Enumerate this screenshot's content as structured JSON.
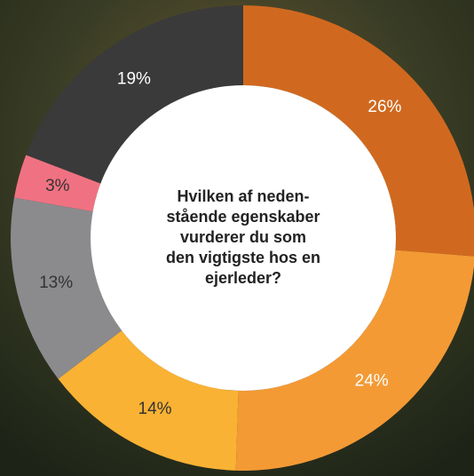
{
  "chart_data": {
    "type": "donut",
    "title": [
      "Hvilken af neden-",
      "stående egenskaber",
      "vurderer du som",
      "den vigtigste hos en",
      "ejerleder?"
    ],
    "values": [
      26,
      24,
      14,
      13,
      3,
      19
    ],
    "value_labels": [
      "26%",
      "24%",
      "14%",
      "13%",
      "3%",
      "19%"
    ],
    "colors": [
      "#d0691f",
      "#f39a35",
      "#f9b233",
      "#8b8b8e",
      "#f07282",
      "#3a3a3a"
    ],
    "label_colors": [
      "#ffffff",
      "#ffffff",
      "#333333",
      "#333333",
      "#333333",
      "#ffffff"
    ]
  }
}
